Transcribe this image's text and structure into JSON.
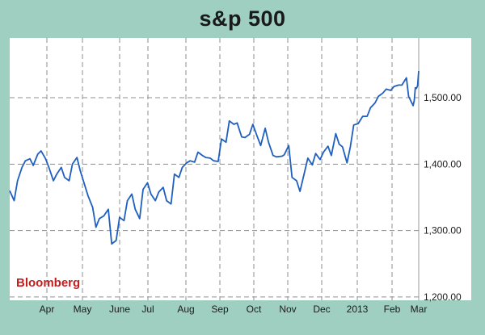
{
  "chart_data": {
    "type": "line",
    "title": "s&p 500",
    "watermark": "Bloomberg",
    "xlabel": "",
    "ylabel": "",
    "x_tick_labels": [
      "Apr",
      "May",
      "June",
      "Jul",
      "Aug",
      "Sep",
      "Oct",
      "Nov",
      "Dec",
      "2013",
      "Feb",
      "Mar"
    ],
    "y_tick_values": [
      1200,
      1300,
      1400,
      1500
    ],
    "y_tick_labels": [
      "1,200.00",
      "1,300.00",
      "1,400.00",
      "1,500.00"
    ],
    "ylim": [
      1195,
      1590
    ],
    "xlim": [
      "2012-03-02",
      "2013-03-02"
    ],
    "grid": true,
    "y_axis_side": "right",
    "colors": {
      "line": "#1f5fbf",
      "background": "#ffffff",
      "frame": "#9ecfc1",
      "watermark": "#c41e1e"
    },
    "series": [
      {
        "values": [
          [
            "2012-03-02",
            1360
          ],
          [
            "2012-03-06",
            1345
          ],
          [
            "2012-03-09",
            1375
          ],
          [
            "2012-03-13",
            1395
          ],
          [
            "2012-03-16",
            1405
          ],
          [
            "2012-03-20",
            1408
          ],
          [
            "2012-03-23",
            1398
          ],
          [
            "2012-03-27",
            1415
          ],
          [
            "2012-03-30",
            1420
          ],
          [
            "2012-04-03",
            1408
          ],
          [
            "2012-04-06",
            1395
          ],
          [
            "2012-04-10",
            1375
          ],
          [
            "2012-04-13",
            1385
          ],
          [
            "2012-04-17",
            1395
          ],
          [
            "2012-04-20",
            1380
          ],
          [
            "2012-04-24",
            1375
          ],
          [
            "2012-04-27",
            1400
          ],
          [
            "2012-05-01",
            1410
          ],
          [
            "2012-05-04",
            1390
          ],
          [
            "2012-05-08",
            1368
          ],
          [
            "2012-05-11",
            1352
          ],
          [
            "2012-05-15",
            1335
          ],
          [
            "2012-05-18",
            1305
          ],
          [
            "2012-05-21",
            1318
          ],
          [
            "2012-05-25",
            1322
          ],
          [
            "2012-05-29",
            1332
          ],
          [
            "2012-06-01",
            1280
          ],
          [
            "2012-06-05",
            1285
          ],
          [
            "2012-06-08",
            1320
          ],
          [
            "2012-06-12",
            1315
          ],
          [
            "2012-06-15",
            1345
          ],
          [
            "2012-06-19",
            1355
          ],
          [
            "2012-06-22",
            1332
          ],
          [
            "2012-06-26",
            1318
          ],
          [
            "2012-06-29",
            1362
          ],
          [
            "2012-07-03",
            1372
          ],
          [
            "2012-07-06",
            1355
          ],
          [
            "2012-07-10",
            1345
          ],
          [
            "2012-07-13",
            1358
          ],
          [
            "2012-07-17",
            1365
          ],
          [
            "2012-07-20",
            1345
          ],
          [
            "2012-07-24",
            1340
          ],
          [
            "2012-07-27",
            1385
          ],
          [
            "2012-07-31",
            1380
          ],
          [
            "2012-08-03",
            1395
          ],
          [
            "2012-08-07",
            1402
          ],
          [
            "2012-08-10",
            1405
          ],
          [
            "2012-08-14",
            1403
          ],
          [
            "2012-08-17",
            1418
          ],
          [
            "2012-08-21",
            1413
          ],
          [
            "2012-08-24",
            1410
          ],
          [
            "2012-08-28",
            1409
          ],
          [
            "2012-08-31",
            1405
          ],
          [
            "2012-09-04",
            1404
          ],
          [
            "2012-09-07",
            1438
          ],
          [
            "2012-09-11",
            1433
          ],
          [
            "2012-09-14",
            1465
          ],
          [
            "2012-09-18",
            1460
          ],
          [
            "2012-09-21",
            1462
          ],
          [
            "2012-09-25",
            1441
          ],
          [
            "2012-09-28",
            1440
          ],
          [
            "2012-10-02",
            1445
          ],
          [
            "2012-10-05",
            1460
          ],
          [
            "2012-10-09",
            1441
          ],
          [
            "2012-10-12",
            1428
          ],
          [
            "2012-10-16",
            1454
          ],
          [
            "2012-10-19",
            1433
          ],
          [
            "2012-10-23",
            1413
          ],
          [
            "2012-10-26",
            1411
          ],
          [
            "2012-10-31",
            1412
          ],
          [
            "2012-11-02",
            1414
          ],
          [
            "2012-11-06",
            1428
          ],
          [
            "2012-11-09",
            1380
          ],
          [
            "2012-11-13",
            1375
          ],
          [
            "2012-11-16",
            1359
          ],
          [
            "2012-11-20",
            1387
          ],
          [
            "2012-11-23",
            1409
          ],
          [
            "2012-11-27",
            1399
          ],
          [
            "2012-11-30",
            1416
          ],
          [
            "2012-12-04",
            1407
          ],
          [
            "2012-12-07",
            1418
          ],
          [
            "2012-12-11",
            1427
          ],
          [
            "2012-12-14",
            1413
          ],
          [
            "2012-12-18",
            1446
          ],
          [
            "2012-12-21",
            1430
          ],
          [
            "2012-12-24",
            1426
          ],
          [
            "2012-12-28",
            1402
          ],
          [
            "2012-12-31",
            1426
          ],
          [
            "2013-01-03",
            1459
          ],
          [
            "2013-01-07",
            1461
          ],
          [
            "2013-01-11",
            1472
          ],
          [
            "2013-01-15",
            1472
          ],
          [
            "2013-01-18",
            1485
          ],
          [
            "2013-01-22",
            1492
          ],
          [
            "2013-01-25",
            1502
          ],
          [
            "2013-01-29",
            1507
          ],
          [
            "2013-02-01",
            1513
          ],
          [
            "2013-02-05",
            1511
          ],
          [
            "2013-02-08",
            1517
          ],
          [
            "2013-02-12",
            1519
          ],
          [
            "2013-02-15",
            1519
          ],
          [
            "2013-02-19",
            1530
          ],
          [
            "2013-02-21",
            1502
          ],
          [
            "2013-02-25",
            1488
          ],
          [
            "2013-02-26",
            1496
          ],
          [
            "2013-02-27",
            1515
          ],
          [
            "2013-02-28",
            1514
          ],
          [
            "2013-03-01",
            1518
          ],
          [
            "2013-03-02",
            1540
          ]
        ]
      }
    ]
  }
}
